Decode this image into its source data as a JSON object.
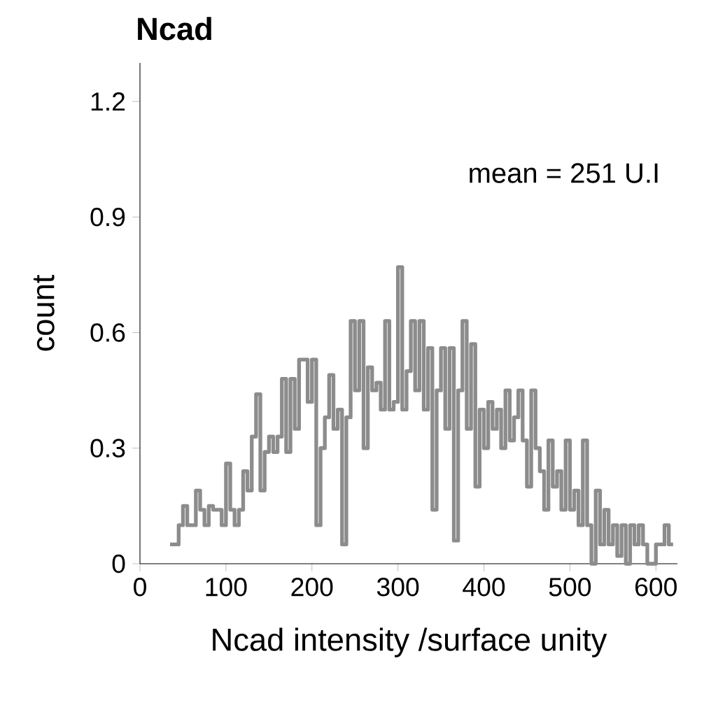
{
  "chart_data": {
    "type": "step",
    "title": "Ncad",
    "xlabel": "Ncad intensity /surface unity",
    "ylabel": "count",
    "annotations": [
      "mean = 251 U.I"
    ],
    "x": [
      35,
      40,
      45,
      50,
      55,
      60,
      65,
      70,
      75,
      80,
      85,
      90,
      95,
      100,
      105,
      110,
      115,
      120,
      125,
      130,
      135,
      140,
      145,
      150,
      155,
      160,
      165,
      170,
      175,
      180,
      185,
      190,
      195,
      200,
      205,
      210,
      215,
      220,
      225,
      230,
      235,
      240,
      245,
      250,
      255,
      260,
      265,
      270,
      275,
      280,
      285,
      290,
      295,
      300,
      305,
      310,
      315,
      320,
      325,
      330,
      335,
      340,
      345,
      350,
      355,
      360,
      365,
      370,
      375,
      380,
      385,
      390,
      395,
      400,
      405,
      410,
      415,
      420,
      425,
      430,
      435,
      440,
      445,
      450,
      455,
      460,
      465,
      470,
      475,
      480,
      485,
      490,
      495,
      500,
      505,
      510,
      515,
      520,
      525,
      530,
      535,
      540,
      545,
      550,
      555,
      560,
      565,
      570,
      575,
      580,
      585,
      590,
      595,
      600,
      605,
      610,
      615,
      620
    ],
    "values": [
      0.05,
      0.05,
      0.1,
      0.15,
      0.1,
      0.1,
      0.19,
      0.14,
      0.1,
      0.15,
      0.14,
      0.14,
      0.1,
      0.26,
      0.14,
      0.1,
      0.14,
      0.24,
      0.19,
      0.33,
      0.44,
      0.19,
      0.29,
      0.33,
      0.29,
      0.33,
      0.48,
      0.29,
      0.48,
      0.35,
      0.53,
      0.53,
      0.42,
      0.53,
      0.1,
      0.3,
      0.38,
      0.49,
      0.35,
      0.4,
      0.05,
      0.38,
      0.63,
      0.45,
      0.63,
      0.3,
      0.51,
      0.45,
      0.47,
      0.4,
      0.63,
      0.4,
      0.42,
      0.77,
      0.4,
      0.5,
      0.63,
      0.45,
      0.63,
      0.4,
      0.56,
      0.14,
      0.45,
      0.56,
      0.35,
      0.56,
      0.06,
      0.45,
      0.63,
      0.35,
      0.57,
      0.2,
      0.4,
      0.3,
      0.42,
      0.35,
      0.4,
      0.3,
      0.45,
      0.32,
      0.38,
      0.45,
      0.32,
      0.2,
      0.45,
      0.3,
      0.24,
      0.14,
      0.32,
      0.2,
      0.24,
      0.14,
      0.32,
      0.14,
      0.19,
      0.1,
      0.32,
      0.1,
      0,
      0.19,
      0.05,
      0.14,
      0.05,
      0.1,
      0.02,
      0.1,
      0,
      0.1,
      0.05,
      0.1,
      0.05,
      0,
      0,
      0.05,
      0.05,
      0.1,
      0.05,
      0.05
    ],
    "color": "#8c8c8c",
    "xlim": [
      0,
      625
    ],
    "xticks": [
      0,
      100,
      200,
      300,
      400,
      500,
      600
    ],
    "ylim": [
      0,
      1.3
    ],
    "yticks": [
      0,
      0.3,
      0.6,
      0.9,
      1.2
    ],
    "grid": false
  }
}
